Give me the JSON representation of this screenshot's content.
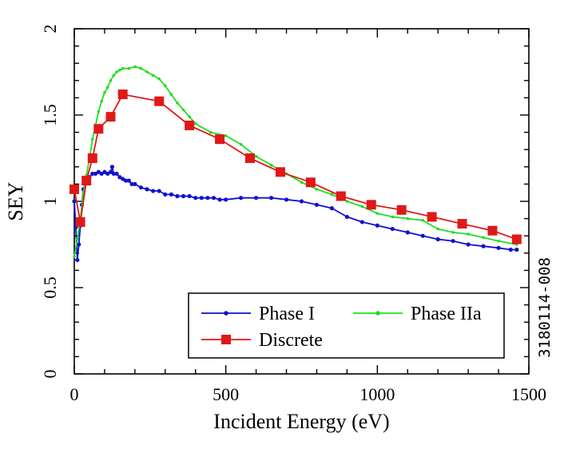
{
  "chart_data": {
    "type": "line",
    "title": "",
    "xlabel": "Incident Energy (eV)",
    "ylabel": "SEY",
    "xlim": [
      0,
      1500
    ],
    "ylim": [
      0,
      2
    ],
    "x_ticks": [
      "0",
      "500",
      "1000",
      "1500"
    ],
    "x_tick_values": [
      0,
      500,
      1000,
      1500
    ],
    "y_ticks": [
      "0",
      "0.5",
      "1",
      "1.5",
      "2"
    ],
    "y_tick_values": [
      0,
      0.5,
      1,
      1.5,
      2
    ],
    "grid": false,
    "legend_position": "bottom-right",
    "side_note": "3180114-008",
    "series": [
      {
        "name": "Phase I",
        "color": "#1010d0",
        "marker": "small-circle",
        "x": [
          0,
          5,
          10,
          15,
          20,
          25,
          30,
          40,
          50,
          60,
          70,
          80,
          90,
          100,
          110,
          120,
          125,
          130,
          140,
          150,
          160,
          170,
          180,
          190,
          200,
          220,
          240,
          260,
          280,
          300,
          320,
          340,
          360,
          380,
          400,
          420,
          440,
          460,
          480,
          500,
          550,
          600,
          650,
          700,
          750,
          800,
          850,
          900,
          950,
          1000,
          1050,
          1100,
          1150,
          1200,
          1250,
          1300,
          1350,
          1400,
          1440,
          1460
        ],
        "y": [
          1.0,
          0.85,
          0.66,
          0.75,
          0.86,
          0.98,
          1.07,
          1.12,
          1.14,
          1.16,
          1.16,
          1.17,
          1.16,
          1.17,
          1.16,
          1.17,
          1.2,
          1.16,
          1.16,
          1.14,
          1.13,
          1.12,
          1.12,
          1.1,
          1.1,
          1.08,
          1.07,
          1.06,
          1.06,
          1.04,
          1.04,
          1.03,
          1.03,
          1.03,
          1.02,
          1.02,
          1.02,
          1.02,
          1.01,
          1.01,
          1.02,
          1.02,
          1.02,
          1.01,
          1.0,
          0.98,
          0.96,
          0.91,
          0.88,
          0.86,
          0.84,
          0.82,
          0.8,
          0.78,
          0.77,
          0.75,
          0.74,
          0.73,
          0.72,
          0.72
        ]
      },
      {
        "name": "Phase IIa",
        "color": "#22dd22",
        "marker": "small-dot",
        "x": [
          0,
          10,
          20,
          30,
          40,
          50,
          60,
          70,
          80,
          90,
          100,
          110,
          120,
          130,
          140,
          150,
          160,
          180,
          200,
          220,
          240,
          260,
          280,
          300,
          320,
          340,
          360,
          380,
          400,
          450,
          500,
          550,
          600,
          650,
          700,
          750,
          800,
          850,
          900,
          950,
          1000,
          1050,
          1100,
          1150,
          1200,
          1250,
          1300,
          1350,
          1400,
          1460
        ],
        "y": [
          0.68,
          0.78,
          0.9,
          1.05,
          1.15,
          1.25,
          1.36,
          1.44,
          1.52,
          1.58,
          1.63,
          1.66,
          1.7,
          1.73,
          1.75,
          1.76,
          1.77,
          1.77,
          1.78,
          1.77,
          1.75,
          1.73,
          1.71,
          1.67,
          1.62,
          1.57,
          1.53,
          1.49,
          1.45,
          1.4,
          1.38,
          1.33,
          1.26,
          1.21,
          1.16,
          1.11,
          1.07,
          1.04,
          1.0,
          0.97,
          0.93,
          0.91,
          0.9,
          0.89,
          0.84,
          0.82,
          0.81,
          0.79,
          0.77,
          0.75
        ]
      },
      {
        "name": "Discrete",
        "color": "#e01818",
        "marker": "square",
        "x": [
          0,
          20,
          40,
          60,
          80,
          120,
          160,
          280,
          380,
          480,
          580,
          680,
          780,
          880,
          980,
          1080,
          1180,
          1280,
          1380,
          1460
        ],
        "y": [
          1.07,
          0.88,
          1.12,
          1.25,
          1.42,
          1.49,
          1.62,
          1.58,
          1.44,
          1.36,
          1.25,
          1.17,
          1.11,
          1.03,
          0.98,
          0.95,
          0.91,
          0.87,
          0.83,
          0.78
        ]
      }
    ]
  }
}
